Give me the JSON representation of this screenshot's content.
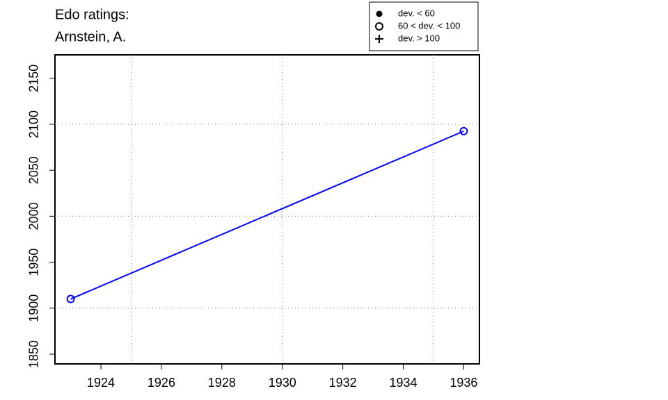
{
  "chart_data": {
    "type": "line",
    "title": "Edo ratings:",
    "subtitle": "Arnstein, A.",
    "x": [
      1923,
      1936
    ],
    "series": [
      {
        "color": "#0000ff",
        "marker": "open-circle",
        "values": [
          1910,
          2092.5
        ]
      }
    ],
    "xlim": [
      1922.48,
      1936.52
    ],
    "ylim": [
      1839.4,
      2175.5
    ],
    "xticks": [
      1924,
      1926,
      1928,
      1930,
      1932,
      1934,
      1936
    ],
    "yticks": [
      1850,
      1900,
      1950,
      2000,
      2050,
      2100,
      2150
    ],
    "grid": true,
    "grid_x": [
      1925,
      1930,
      1935
    ],
    "grid_y": [
      1900,
      2000,
      2100
    ],
    "legend_position": "top-right",
    "legend": [
      {
        "label": "dev. < 60",
        "marker": "filled-circle"
      },
      {
        "label": "60 < dev. < 100",
        "marker": "open-circle"
      },
      {
        "label": "dev. > 100",
        "marker": "plus"
      }
    ]
  }
}
